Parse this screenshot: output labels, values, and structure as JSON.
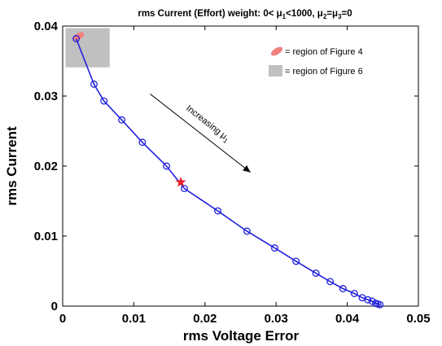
{
  "chart_data": {
    "type": "line",
    "title_parts": {
      "prefix": "rms Current (Effort) weight: 0< μ",
      "sub1": "1",
      "mid": "<1000, μ",
      "sub2": "2",
      "eq1": "=μ",
      "sub3": "3",
      "suffix": "=0"
    },
    "xlabel": "rms Voltage Error",
    "ylabel": "rms Current",
    "xlim": [
      0,
      0.05
    ],
    "ylim": [
      0,
      0.04
    ],
    "xticks": [
      "0",
      "0.01",
      "0.02",
      "0.03",
      "0.04",
      "0.05"
    ],
    "yticks": [
      "0",
      "0.01",
      "0.02",
      "0.03",
      "0.04"
    ],
    "xtick_values": [
      0,
      0.01,
      0.02,
      0.03,
      0.04,
      0.05
    ],
    "ytick_values": [
      0,
      0.01,
      0.02,
      0.03,
      0.04
    ],
    "line_color": "#1f1fdd",
    "series": [
      {
        "x": [
          0.0019,
          0.0044,
          0.0058,
          0.0083,
          0.0112,
          0.0146,
          0.0171,
          0.0218,
          0.0259,
          0.0298,
          0.0328,
          0.0356,
          0.0376,
          0.0394,
          0.041,
          0.0421,
          0.0429,
          0.0435,
          0.044,
          0.0443,
          0.0446
        ],
        "y": [
          0.0382,
          0.0317,
          0.0293,
          0.0266,
          0.0234,
          0.02,
          0.0168,
          0.0136,
          0.0107,
          0.0083,
          0.0064,
          0.0047,
          0.0035,
          0.0025,
          0.0018,
          0.0012,
          0.0009,
          0.0007,
          0.0004,
          0.0003,
          0.0002
        ]
      }
    ],
    "star_point": {
      "x": 0.0166,
      "y": 0.0177,
      "color": "#e8202a"
    },
    "regions": {
      "figure6_box": {
        "x": [
          0.0004,
          0.0066
        ],
        "y": [
          0.0341,
          0.0397
        ],
        "color": "#c0c0c0"
      },
      "figure4_ellipse": {
        "cx": 0.0022,
        "cy": 0.0385,
        "color": "#f08080"
      }
    },
    "legend": {
      "placement": "top-right",
      "items": [
        {
          "label": "= region of Figure 4",
          "symbol": "ellipse",
          "color": "#f08080"
        },
        {
          "label": "= region of Figure 6",
          "symbol": "square",
          "color": "#c0c0c0"
        }
      ]
    },
    "annotation": {
      "text_prefix": "Increasing μ",
      "text_sub": "1",
      "arrow_from": {
        "x": 0.0123,
        "y": 0.0303
      },
      "arrow_to": {
        "x": 0.0264,
        "y": 0.0191
      }
    },
    "grid": false
  }
}
